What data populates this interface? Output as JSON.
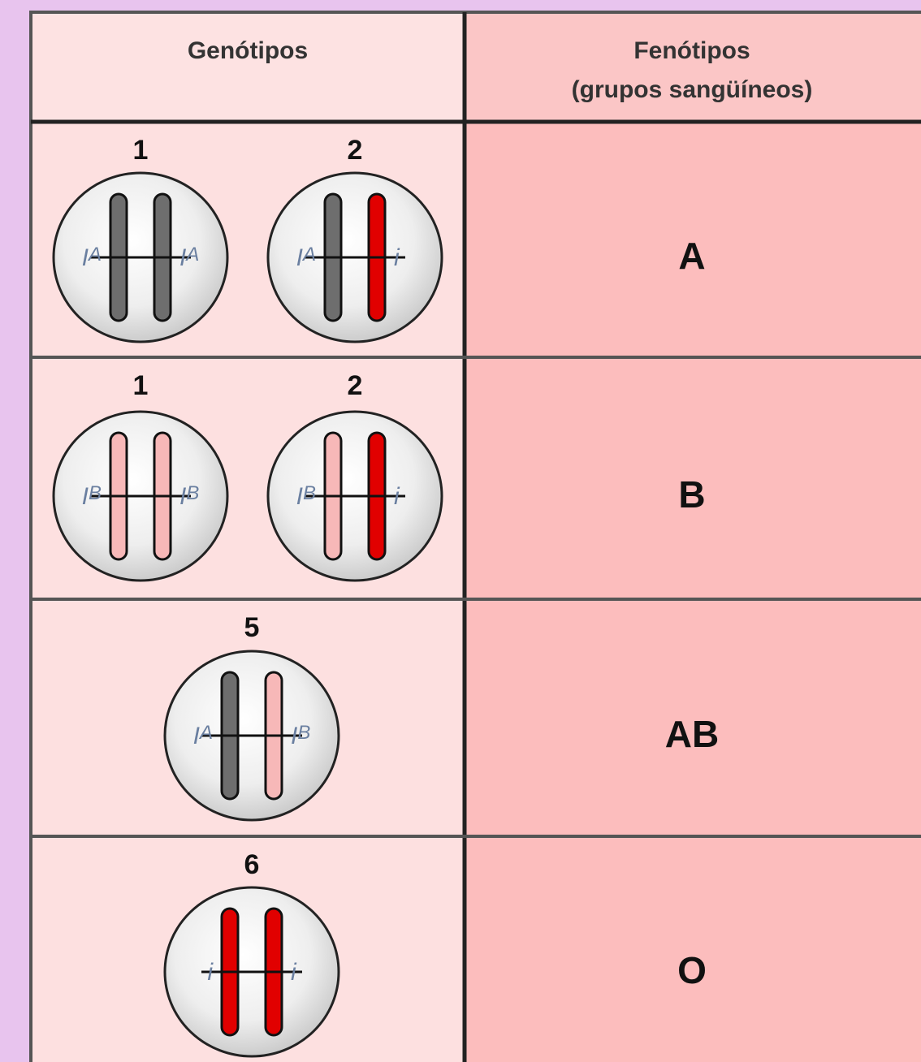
{
  "header": {
    "genotypes": "Genótipos",
    "phenotypes": [
      "Fenótipos",
      "(grupos sangüíneos)"
    ]
  },
  "rows": [
    {
      "cells": [
        {
          "number": "1",
          "left": {
            "letter": "I",
            "sup": "A"
          },
          "right": {
            "letter": "I",
            "sup": "A"
          },
          "colors": [
            "#6e6e6e",
            "#6e6e6e"
          ]
        },
        {
          "number": "2",
          "left": {
            "letter": "I",
            "sup": "A"
          },
          "right": {
            "letter": "i"
          },
          "colors": [
            "#6e6e6e",
            "#e10000"
          ]
        }
      ],
      "phenotype": "A"
    },
    {
      "cells": [
        {
          "number": "1",
          "left": {
            "letter": "I",
            "sup": "B"
          },
          "right": {
            "letter": "I",
            "sup": "B"
          },
          "colors": [
            "#f7b8b8",
            "#f7b8b8"
          ]
        },
        {
          "number": "2",
          "left": {
            "letter": "I",
            "sup": "B"
          },
          "right": {
            "letter": "i"
          },
          "colors": [
            "#f7b8b8",
            "#e10000"
          ]
        }
      ],
      "phenotype": "B"
    },
    {
      "cells": [
        {
          "number": "5",
          "left": {
            "letter": "I",
            "sup": "A"
          },
          "right": {
            "letter": "I",
            "sup": "B"
          },
          "colors": [
            "#6e6e6e",
            "#f7b8b8"
          ]
        }
      ],
      "phenotype": "AB"
    },
    {
      "cells": [
        {
          "number": "6",
          "left": {
            "letter": "i"
          },
          "right": {
            "letter": "i"
          },
          "colors": [
            "#e10000",
            "#e10000"
          ]
        }
      ],
      "phenotype": "O"
    }
  ]
}
